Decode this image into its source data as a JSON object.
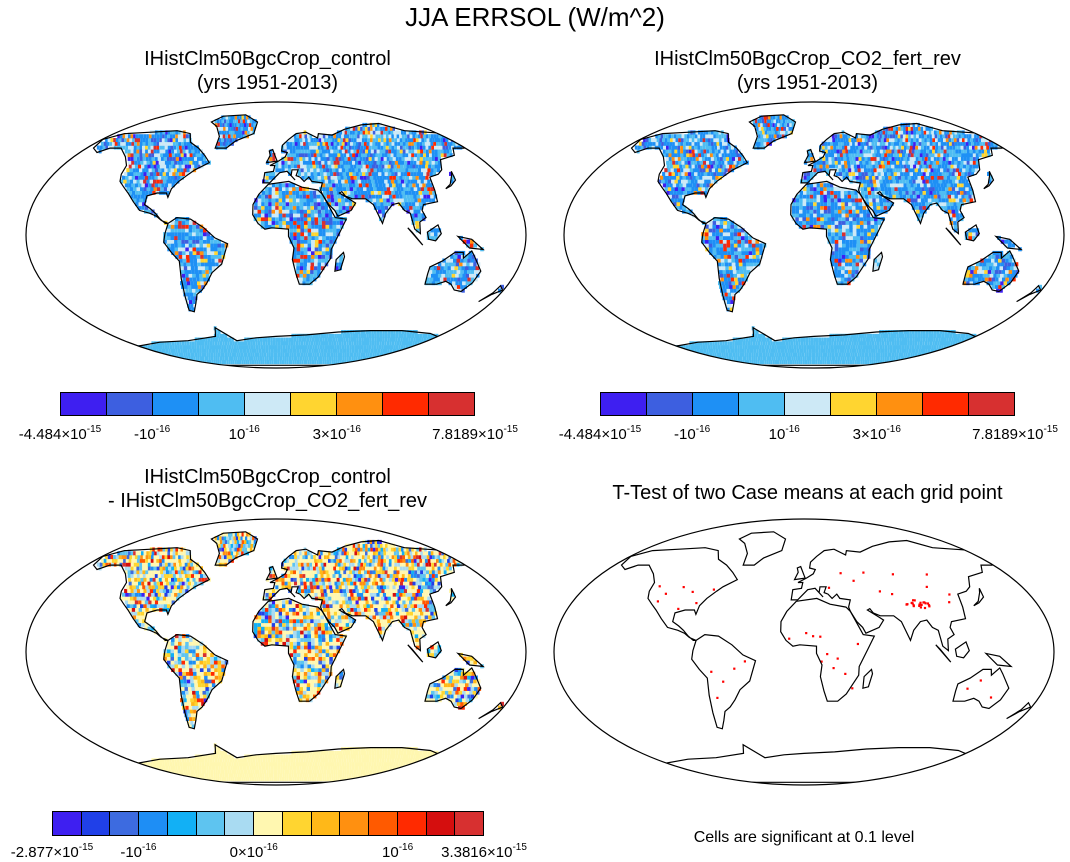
{
  "figure": {
    "title": "JJA ERRSOL (W/m^2)"
  },
  "panels": [
    {
      "title_line1": "IHistClm50BgcCrop_control",
      "title_line2": "(yrs 1951-2013)",
      "style": "values"
    },
    {
      "title_line1": "IHistClm50BgcCrop_CO2_fert_rev",
      "title_line2": "(yrs 1951-2013)",
      "style": "values"
    },
    {
      "title_line1": "IHistClm50BgcCrop_control",
      "title_line2": "- IHistClm50BgcCrop_CO2_fert_rev",
      "style": "difference"
    },
    {
      "title_line1": "T-Test of two Case means at each grid point",
      "title_line2": "",
      "style": "significance",
      "note": "Cells are significant at 0.1 level"
    }
  ],
  "colorbars": {
    "values": {
      "colors": [
        "#3e1ff1",
        "#3d5fe0",
        "#1e90f5",
        "#4fbdf2",
        "#cde9f6",
        "#ffd530",
        "#ff9010",
        "#ff2a00",
        "#d73030"
      ],
      "labels": [
        {
          "base": "-4.484×10",
          "exp": "-15"
        },
        {
          "base": "-10",
          "exp": "-16"
        },
        {
          "base": "10",
          "exp": "-16"
        },
        {
          "base": "3×10",
          "exp": "-16"
        },
        {
          "base": "7.8189×10",
          "exp": "-15"
        }
      ]
    },
    "difference": {
      "colors": [
        "#3e1ff1",
        "#2040e8",
        "#3d6be0",
        "#1e8ef5",
        "#12b0f5",
        "#5ec4f0",
        "#a9dbf2",
        "#fff7b0",
        "#ffd530",
        "#ffb818",
        "#ff9010",
        "#ff5a00",
        "#ff2a00",
        "#d50e0e",
        "#d73030"
      ],
      "labels": [
        {
          "base": "-2.877×10",
          "exp": "-15"
        },
        {
          "base": "-10",
          "exp": "-16"
        },
        {
          "base": "0×10",
          "exp": "-16"
        },
        {
          "base": "10",
          "exp": "-16"
        },
        {
          "base": "3.3816×10",
          "exp": "-15"
        }
      ]
    }
  }
}
